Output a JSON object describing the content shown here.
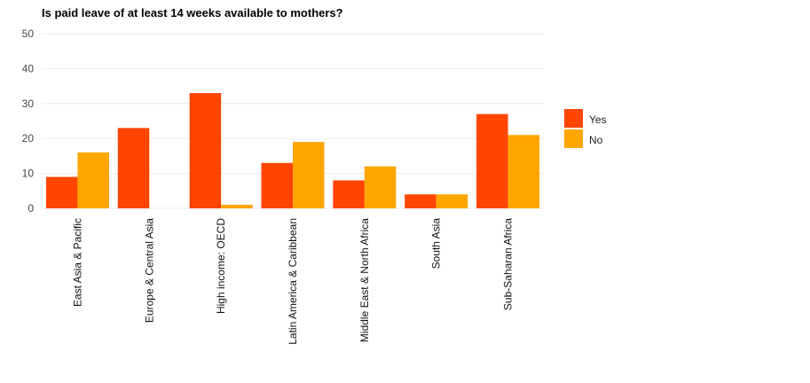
{
  "chart_data": {
    "type": "bar",
    "title": "Is paid leave of at least 14 weeks available to mothers?",
    "xlabel": "",
    "ylabel": "",
    "categories": [
      "East Asia & Pacific",
      "Europe & Central Asia",
      "High income: OECD",
      "Latin America & Caribbean",
      "Middle East & North Africa",
      "South Asia",
      "Sub-Saharan Africa"
    ],
    "series": [
      {
        "name": "Yes",
        "color": "#ff4500",
        "values": [
          9,
          23,
          33,
          13,
          8,
          4,
          27
        ]
      },
      {
        "name": "No",
        "color": "#ffa500",
        "values": [
          16,
          0,
          1,
          19,
          12,
          4,
          21
        ]
      }
    ],
    "ylim": [
      0,
      50
    ],
    "yticks": [
      "0",
      "10",
      "20",
      "30",
      "40",
      "50"
    ],
    "grid": true,
    "legend_position": "right"
  }
}
